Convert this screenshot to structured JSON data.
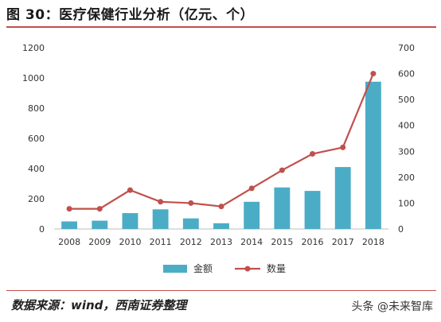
{
  "title": "图 30：医疗保健行业分析（亿元、个）",
  "source": "数据来源：wind，西南证券整理",
  "watermark": "头条 @未来智库",
  "colors": {
    "bar": "#4bacc6",
    "line": "#c0504d",
    "accent": "#c0504d"
  },
  "chart_data": {
    "type": "bar",
    "categories": [
      "2008",
      "2009",
      "2010",
      "2011",
      "2012",
      "2013",
      "2014",
      "2015",
      "2016",
      "2017",
      "2018"
    ],
    "series": [
      {
        "name": "金额",
        "type": "bar",
        "axis": "left",
        "values": [
          50,
          55,
          105,
          130,
          70,
          38,
          180,
          275,
          252,
          410,
          975
        ]
      },
      {
        "name": "数量",
        "type": "line",
        "axis": "right",
        "values": [
          78,
          78,
          150,
          105,
          100,
          87,
          157,
          227,
          290,
          315,
          600
        ]
      }
    ],
    "ylim": [
      0,
      1200
    ],
    "y2lim": [
      0,
      700
    ],
    "yticks": [
      "0",
      "200",
      "400",
      "600",
      "800",
      "1000",
      "1200"
    ],
    "y2ticks": [
      "0",
      "100",
      "200",
      "300",
      "400",
      "500",
      "600",
      "700"
    ],
    "legend": "bottom-center",
    "grid": false
  }
}
